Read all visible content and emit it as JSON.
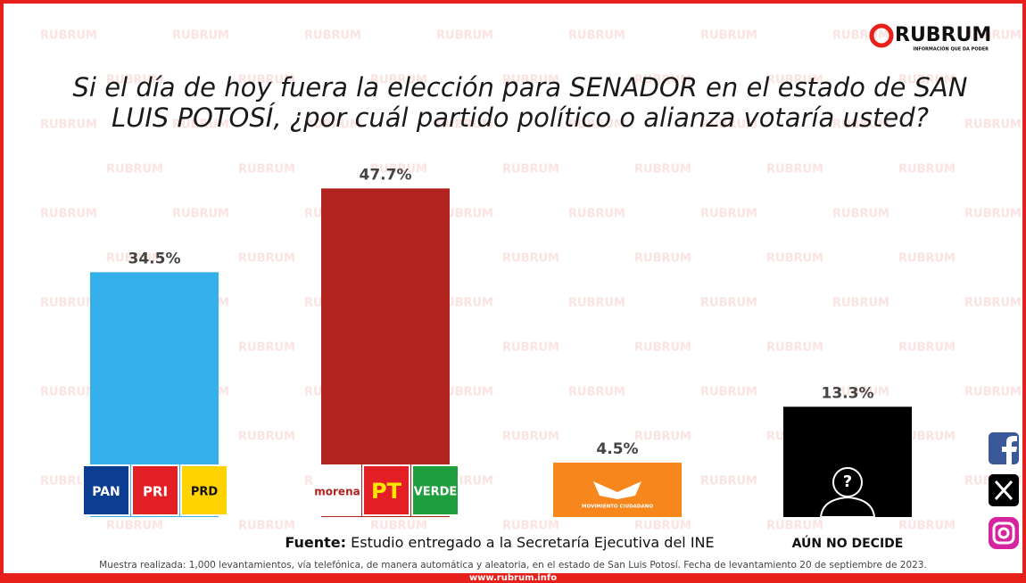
{
  "brand": {
    "name": "RUBRUM",
    "tagline": "INFORMACIÓN QUE DA PODER",
    "watermark": "RUBRUM"
  },
  "chart_data": {
    "type": "bar",
    "title": [
      "Si el día de hoy fuera la elección para SENADOR en el estado de SAN",
      "LUIS POTOSÍ, ¿por cuál partido político o alianza votaría usted?"
    ],
    "categories": [
      null,
      null,
      null,
      "AÚN NO DECIDE"
    ],
    "logo_texts": [
      [
        "PAN",
        "PRI",
        "PRD"
      ],
      [
        "morena",
        "PT",
        "VERDE"
      ],
      [
        "MOVIMIENTO CIUDADANO"
      ],
      [
        "?"
      ]
    ],
    "values": [
      34.5,
      47.7,
      4.5,
      13.3
    ],
    "value_labels": [
      "34.5%",
      "47.7%",
      "4.5%",
      "13.3%"
    ],
    "colors": [
      "#35b0ea",
      "#b0231f",
      "#f7861d",
      "#000000"
    ]
  },
  "source": {
    "label": "Fuente:",
    "text": "Estudio entregado a la Secretaría Ejecutiva del INE"
  },
  "footnote": "Muestra realizada: 1,000 levantamientos, vía telefónica, de manera automática y aleatoria, en el estado de San Luis Potosí. Fecha de levantamiento 20 de septiembre de 2023.",
  "website": "www.rubrum.info"
}
